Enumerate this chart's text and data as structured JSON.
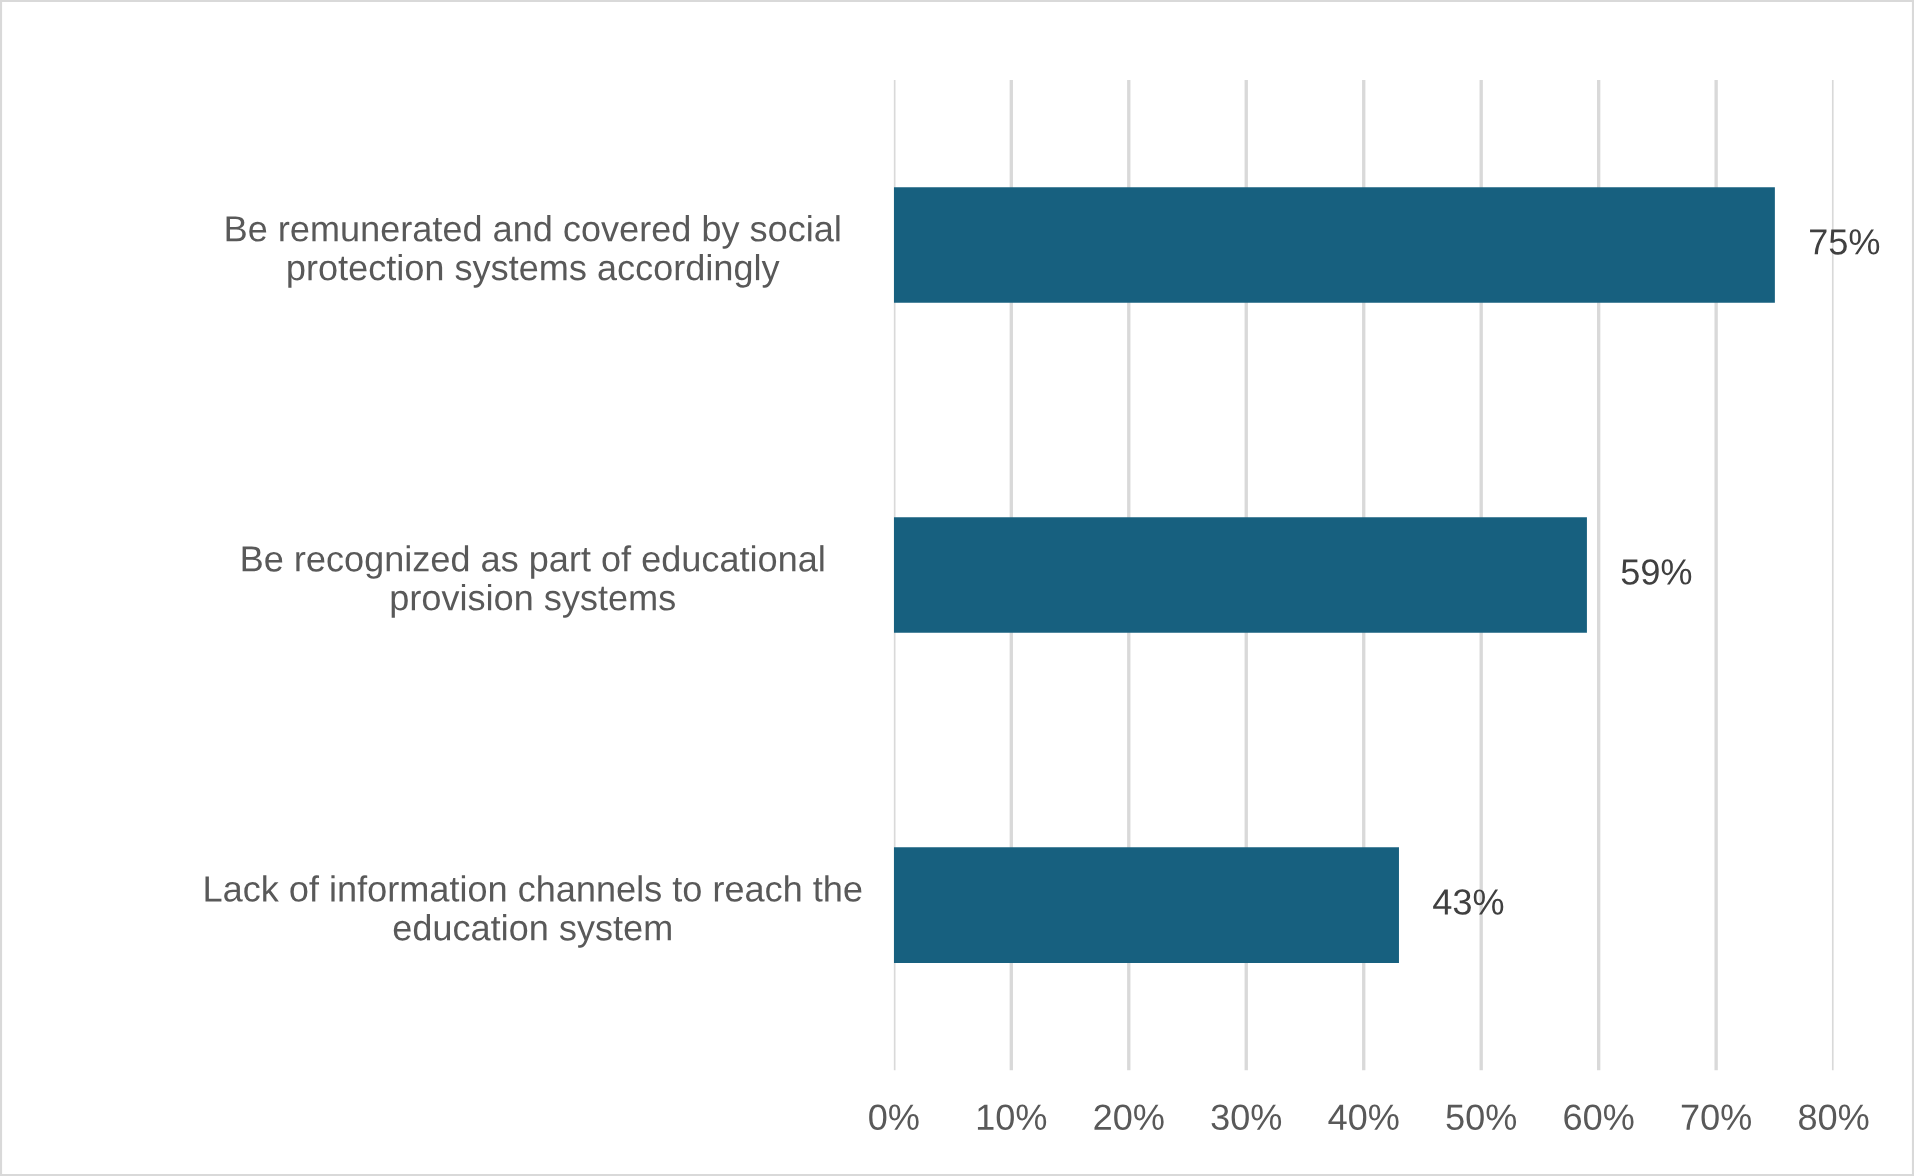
{
  "chart_data": {
    "type": "bar",
    "orientation": "horizontal",
    "categories": [
      "Be remunerated and covered by social\nprotection systems accordingly",
      "Be recognized as part of educational\nprovision systems",
      "Lack of information channels to reach the\neducation system"
    ],
    "values": [
      75,
      59,
      43
    ],
    "color": "#17607f",
    "value_labels": [
      "75%",
      "59%",
      "43%"
    ],
    "xlim": [
      0,
      80
    ],
    "xticks": [
      {
        "value": 0,
        "label": "0%"
      },
      {
        "value": 10,
        "label": "10%"
      },
      {
        "value": 20,
        "label": "20%"
      },
      {
        "value": 30,
        "label": "30%"
      },
      {
        "value": 40,
        "label": "40%"
      },
      {
        "value": 50,
        "label": "50%"
      },
      {
        "value": 60,
        "label": "60%"
      },
      {
        "value": 70,
        "label": "70%"
      },
      {
        "value": 80,
        "label": "80%"
      }
    ],
    "grid": "x",
    "legend": false
  }
}
